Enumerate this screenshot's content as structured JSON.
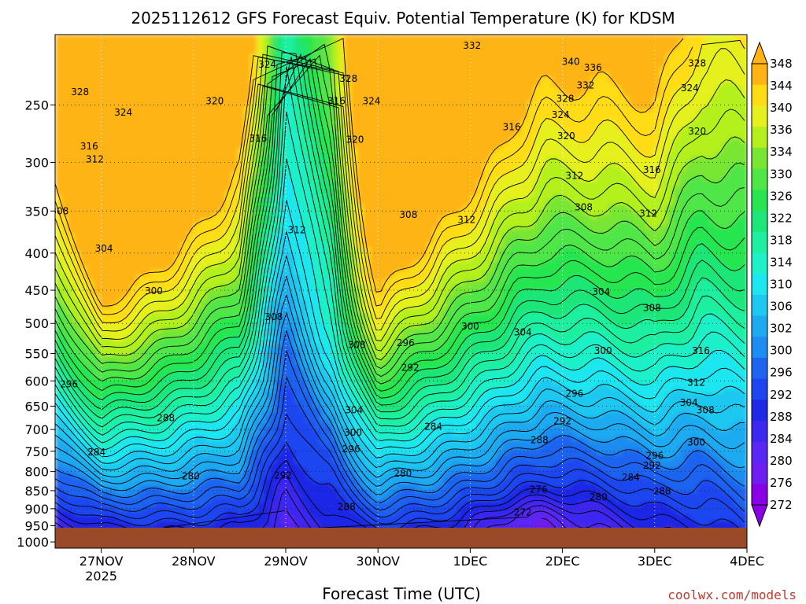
{
  "chart_data": {
    "type": "contour",
    "title": "2025112612 GFS Forecast Equiv. Potential Temperature (K) for KDSM",
    "xlabel": "Forecast Time (UTC)",
    "ylabel": "",
    "credit": "coolwx.com/models",
    "x_ticks": [
      {
        "label": "27NOV",
        "sub": "2025",
        "day": 1
      },
      {
        "label": "28NOV",
        "sub": "",
        "day": 2
      },
      {
        "label": "29NOV",
        "sub": "",
        "day": 3
      },
      {
        "label": "30NOV",
        "sub": "",
        "day": 4
      },
      {
        "label": "1DEC",
        "sub": "",
        "day": 5
      },
      {
        "label": "2DEC",
        "sub": "",
        "day": 6
      },
      {
        "label": "3DEC",
        "sub": "",
        "day": 7
      },
      {
        "label": "4DEC",
        "sub": "",
        "day": 8
      }
    ],
    "xlim_days": [
      0.5,
      8.0
    ],
    "y_axis": {
      "scale": "pressure-log-inverted",
      "ylim_hpa": [
        1020,
        200
      ],
      "ticks": [
        250,
        300,
        350,
        400,
        450,
        500,
        550,
        600,
        650,
        700,
        750,
        800,
        850,
        900,
        950,
        1000
      ]
    },
    "colorbar": {
      "levels": [
        272,
        276,
        280,
        284,
        288,
        292,
        296,
        300,
        302,
        306,
        310,
        314,
        318,
        322,
        326,
        330,
        334,
        336,
        340,
        344,
        348
      ],
      "colors": [
        "#8a00e6",
        "#6e1ef0",
        "#5a28f5",
        "#3c28f0",
        "#1e28e6",
        "#1e46f0",
        "#1e64f0",
        "#1e8cf0",
        "#1eaaf0",
        "#1ec8f0",
        "#1ee6f0",
        "#1ef0c8",
        "#1ef0a0",
        "#1ee678",
        "#28e650",
        "#50e646",
        "#78e632",
        "#b4f01e",
        "#e6f01e",
        "#ffdc14",
        "#ffb414"
      ],
      "over_color": "#ffb414",
      "under_color": "#8a00e6"
    },
    "contour_labels": [
      {
        "v": "328",
        "d": 0.77,
        "p": 240
      },
      {
        "v": "324",
        "d": 2.8,
        "p": 220
      },
      {
        "v": "328",
        "d": 3.68,
        "p": 230
      },
      {
        "v": "332",
        "d": 5.02,
        "p": 207
      },
      {
        "v": "340",
        "d": 6.09,
        "p": 218
      },
      {
        "v": "336",
        "d": 6.33,
        "p": 222
      },
      {
        "v": "328",
        "d": 7.46,
        "p": 219
      },
      {
        "v": "324",
        "d": 1.24,
        "p": 256
      },
      {
        "v": "320",
        "d": 2.23,
        "p": 247
      },
      {
        "v": "316",
        "d": 3.55,
        "p": 247
      },
      {
        "v": "324",
        "d": 3.93,
        "p": 247
      },
      {
        "v": "332",
        "d": 6.25,
        "p": 235
      },
      {
        "v": "328",
        "d": 6.03,
        "p": 245
      },
      {
        "v": "324",
        "d": 5.98,
        "p": 258
      },
      {
        "v": "324",
        "d": 7.38,
        "p": 237
      },
      {
        "v": "316",
        "d": 0.87,
        "p": 285
      },
      {
        "v": "312",
        "d": 0.93,
        "p": 297
      },
      {
        "v": "316",
        "d": 2.7,
        "p": 278
      },
      {
        "v": "320",
        "d": 3.75,
        "p": 279
      },
      {
        "v": "316",
        "d": 5.45,
        "p": 268
      },
      {
        "v": "320",
        "d": 6.04,
        "p": 276
      },
      {
        "v": "320",
        "d": 7.46,
        "p": 272
      },
      {
        "v": "312",
        "d": 6.13,
        "p": 313
      },
      {
        "v": "316",
        "d": 6.97,
        "p": 307
      },
      {
        "v": "308",
        "d": 0.55,
        "p": 350
      },
      {
        "v": "308",
        "d": 4.33,
        "p": 354
      },
      {
        "v": "312",
        "d": 4.96,
        "p": 360
      },
      {
        "v": "308",
        "d": 6.23,
        "p": 346
      },
      {
        "v": "312",
        "d": 6.93,
        "p": 353
      },
      {
        "v": "312",
        "d": 3.12,
        "p": 372
      },
      {
        "v": "304",
        "d": 1.03,
        "p": 394
      },
      {
        "v": "300",
        "d": 1.57,
        "p": 451
      },
      {
        "v": "304",
        "d": 6.42,
        "p": 452
      },
      {
        "v": "308",
        "d": 6.97,
        "p": 476
      },
      {
        "v": "308",
        "d": 2.87,
        "p": 490
      },
      {
        "v": "300",
        "d": 5.0,
        "p": 505
      },
      {
        "v": "304",
        "d": 5.57,
        "p": 514
      },
      {
        "v": "308",
        "d": 3.77,
        "p": 535
      },
      {
        "v": "296",
        "d": 4.3,
        "p": 532
      },
      {
        "v": "300",
        "d": 6.44,
        "p": 545
      },
      {
        "v": "316",
        "d": 7.5,
        "p": 545
      },
      {
        "v": "292",
        "d": 4.35,
        "p": 575
      },
      {
        "v": "296",
        "d": 0.65,
        "p": 606
      },
      {
        "v": "312",
        "d": 7.45,
        "p": 603
      },
      {
        "v": "296",
        "d": 6.13,
        "p": 625
      },
      {
        "v": "304",
        "d": 7.37,
        "p": 643
      },
      {
        "v": "308",
        "d": 7.55,
        "p": 658
      },
      {
        "v": "304",
        "d": 3.74,
        "p": 658
      },
      {
        "v": "288",
        "d": 1.7,
        "p": 675
      },
      {
        "v": "292",
        "d": 6.0,
        "p": 682
      },
      {
        "v": "284",
        "d": 4.6,
        "p": 694
      },
      {
        "v": "300",
        "d": 3.73,
        "p": 707
      },
      {
        "v": "288",
        "d": 5.75,
        "p": 724
      },
      {
        "v": "300",
        "d": 7.45,
        "p": 729
      },
      {
        "v": "284",
        "d": 0.95,
        "p": 752
      },
      {
        "v": "296",
        "d": 3.71,
        "p": 745
      },
      {
        "v": "296",
        "d": 7.0,
        "p": 761
      },
      {
        "v": "292",
        "d": 6.97,
        "p": 785
      },
      {
        "v": "280",
        "d": 1.97,
        "p": 812
      },
      {
        "v": "292",
        "d": 2.97,
        "p": 810
      },
      {
        "v": "280",
        "d": 4.27,
        "p": 805
      },
      {
        "v": "284",
        "d": 6.74,
        "p": 815
      },
      {
        "v": "276",
        "d": 5.74,
        "p": 847
      },
      {
        "v": "288",
        "d": 7.08,
        "p": 851
      },
      {
        "v": "280",
        "d": 6.39,
        "p": 867
      },
      {
        "v": "288",
        "d": 3.66,
        "p": 895
      },
      {
        "v": "272",
        "d": 5.57,
        "p": 910
      }
    ]
  }
}
